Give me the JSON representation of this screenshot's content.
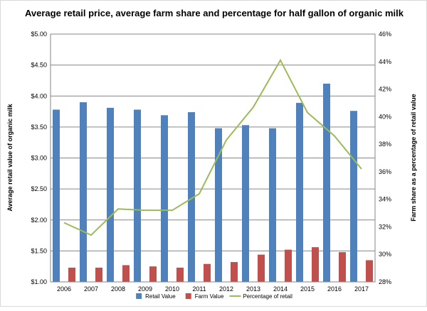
{
  "chart_data": {
    "type": "bar",
    "title": "Average retail price, average farm share and percentage for half gallon of organic milk",
    "xlabel": "",
    "ylabel": "Average retail value of organic milk",
    "y2label": "Farm share as a percentage of retail value",
    "categories": [
      "2006",
      "2007",
      "2008",
      "2009",
      "2010",
      "2011",
      "2012",
      "2013",
      "2014",
      "2015",
      "2016",
      "2017"
    ],
    "ylim": [
      1.0,
      5.0
    ],
    "y2lim": [
      28,
      46
    ],
    "y_ticks": [
      "$1.00",
      "$1.50",
      "$2.00",
      "$2.50",
      "$3.00",
      "$3.50",
      "$4.00",
      "$4.50",
      "$5.00"
    ],
    "y2_ticks": [
      "28%",
      "30%",
      "32%",
      "34%",
      "36%",
      "38%",
      "40%",
      "42%",
      "44%",
      "46%"
    ],
    "grid": true,
    "legend_position": "bottom",
    "series": [
      {
        "name": "Retail Value",
        "kind": "bar",
        "axis": "left",
        "color": "#4f81bd",
        "values": [
          3.78,
          3.9,
          3.81,
          3.78,
          3.69,
          3.74,
          3.48,
          3.53,
          3.48,
          3.89,
          4.2,
          3.76
        ]
      },
      {
        "name": "Farm Value",
        "kind": "bar",
        "axis": "left",
        "color": "#c0504d",
        "values": [
          1.23,
          1.23,
          1.27,
          1.25,
          1.23,
          1.29,
          1.32,
          1.44,
          1.52,
          1.56,
          1.48,
          1.35
        ]
      },
      {
        "name": "Percentage of retail",
        "kind": "line",
        "axis": "right",
        "color": "#9bbb59",
        "values": [
          32.3,
          31.4,
          33.3,
          33.2,
          33.2,
          34.4,
          38.3,
          40.7,
          44.1,
          40.3,
          38.6,
          36.2
        ]
      }
    ]
  }
}
